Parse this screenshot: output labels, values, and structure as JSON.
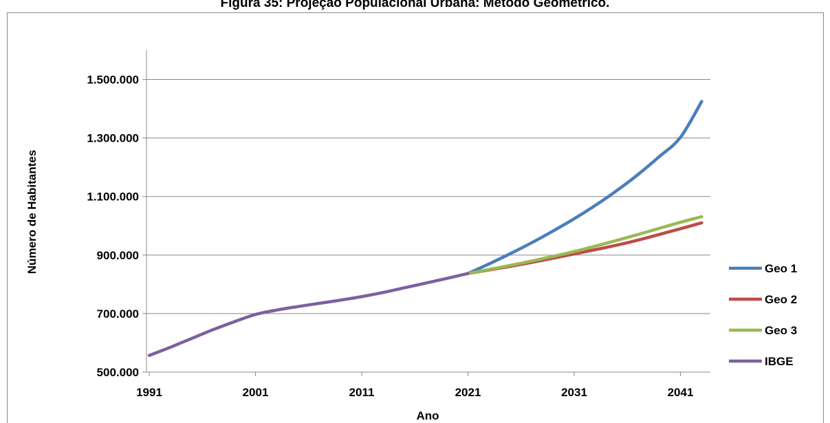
{
  "title": "Figura 35: Projeção Populacional Urbana: Método Geométrico.",
  "chart_data": {
    "type": "line",
    "title": "Figura 35: Projeção Populacional Urbana: Método Geométrico.",
    "xlabel": "Ano",
    "ylabel": "Número de Habitantes",
    "xlim": [
      1991,
      2043
    ],
    "ylim": [
      500000,
      1600000
    ],
    "xticks": [
      1991,
      2001,
      2011,
      2021,
      2031,
      2041
    ],
    "yticks": [
      500000,
      700000,
      900000,
      1100000,
      1300000,
      1500000
    ],
    "xtick_labels": [
      "1991",
      "2001",
      "2011",
      "2021",
      "2031",
      "2041"
    ],
    "ytick_labels": [
      "500.000",
      "700.000",
      "900.000",
      "1.100.000",
      "1.300.000",
      "1.500.000"
    ],
    "grid": "horizontal",
    "legend_position": "right",
    "series": [
      {
        "name": "Geo 1",
        "color": "#4a7ebb",
        "x": [
          2021,
          2023,
          2025,
          2027,
          2029,
          2031,
          2033,
          2035,
          2037,
          2039,
          2041,
          2043
        ],
        "values": [
          837000,
          870000,
          905000,
          942000,
          982000,
          1024000,
          1070000,
          1120000,
          1175000,
          1236000,
          1302000,
          1425000
        ]
      },
      {
        "name": "Geo 2",
        "color": "#be4b48",
        "x": [
          2021,
          2026,
          2031,
          2036,
          2041,
          2043
        ],
        "values": [
          837000,
          868000,
          904000,
          942000,
          990000,
          1010000
        ]
      },
      {
        "name": "Geo 3",
        "color": "#98b954",
        "x": [
          2021,
          2026,
          2031,
          2036,
          2041,
          2043
        ],
        "values": [
          837000,
          872000,
          912000,
          960000,
          1012000,
          1031000
        ]
      },
      {
        "name": "IBGE",
        "color": "#7d60a0",
        "x": [
          1991,
          1993,
          1995,
          1997,
          1999,
          2001,
          2003,
          2005,
          2007,
          2009,
          2011,
          2013,
          2015,
          2017,
          2019,
          2021
        ],
        "values": [
          557000,
          585000,
          615000,
          645000,
          672000,
          697000,
          712000,
          724000,
          735000,
          746000,
          758000,
          772000,
          788000,
          804000,
          820000,
          837000
        ]
      }
    ]
  }
}
